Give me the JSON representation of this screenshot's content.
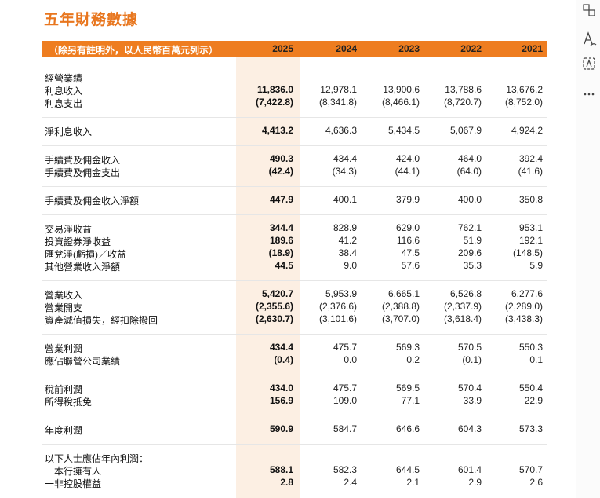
{
  "title": "五年財務數據",
  "table": {
    "header": {
      "note": "（除另有註明外，以人民幣百萬元列示）",
      "years": [
        "2025",
        "2024",
        "2023",
        "2022",
        "2021"
      ]
    },
    "groups": [
      {
        "rows": [
          {
            "label": "經營業績"
          },
          {
            "label": "利息收入",
            "values": [
              "11,836.0",
              "12,978.1",
              "13,900.6",
              "13,788.6",
              "13,676.2"
            ]
          },
          {
            "label": "利息支出",
            "values": [
              "(7,422.8)",
              "(8,341.8)",
              "(8,466.1)",
              "(8,720.7)",
              "(8,752.0)"
            ]
          }
        ]
      },
      {
        "rows": [
          {
            "label": "淨利息收入",
            "values": [
              "4,413.2",
              "4,636.3",
              "5,434.5",
              "5,067.9",
              "4,924.2"
            ]
          }
        ]
      },
      {
        "rows": [
          {
            "label": "手續費及佣金收入",
            "values": [
              "490.3",
              "434.4",
              "424.0",
              "464.0",
              "392.4"
            ]
          },
          {
            "label": "手續費及佣金支出",
            "values": [
              "(42.4)",
              "(34.3)",
              "(44.1)",
              "(64.0)",
              "(41.6)"
            ]
          }
        ]
      },
      {
        "rows": [
          {
            "label": "手續費及佣金收入淨額",
            "values": [
              "447.9",
              "400.1",
              "379.9",
              "400.0",
              "350.8"
            ]
          }
        ]
      },
      {
        "rows": [
          {
            "label": "交易淨收益",
            "values": [
              "344.4",
              "828.9",
              "629.0",
              "762.1",
              "953.1"
            ]
          },
          {
            "label": "投資證券淨收益",
            "values": [
              "189.6",
              "41.2",
              "116.6",
              "51.9",
              "192.1"
            ]
          },
          {
            "label": "匯兌淨(虧損)／收益",
            "values": [
              "(18.9)",
              "38.4",
              "47.5",
              "209.6",
              "(148.5)"
            ]
          },
          {
            "label": "其他營業收入淨額",
            "values": [
              "44.5",
              "9.0",
              "57.6",
              "35.3",
              "5.9"
            ]
          }
        ]
      },
      {
        "rows": [
          {
            "label": "營業收入",
            "values": [
              "5,420.7",
              "5,953.9",
              "6,665.1",
              "6,526.8",
              "6,277.6"
            ]
          },
          {
            "label": "營業開支",
            "values": [
              "(2,355.6)",
              "(2,376.6)",
              "(2,388.8)",
              "(2,337.9)",
              "(2,289.0)"
            ]
          },
          {
            "label": "資產減值損失，經扣除撥回",
            "values": [
              "(2,630.7)",
              "(3,101.6)",
              "(3,707.0)",
              "(3,618.4)",
              "(3,438.3)"
            ]
          }
        ]
      },
      {
        "rows": [
          {
            "label": "營業利潤",
            "values": [
              "434.4",
              "475.7",
              "569.3",
              "570.5",
              "550.3"
            ]
          },
          {
            "label": "應佔聯營公司業績",
            "values": [
              "(0.4)",
              "0.0",
              "0.2",
              "(0.1)",
              "0.1"
            ]
          }
        ]
      },
      {
        "rows": [
          {
            "label": "稅前利潤",
            "values": [
              "434.0",
              "475.7",
              "569.5",
              "570.4",
              "550.4"
            ]
          },
          {
            "label": "所得稅抵免",
            "values": [
              "156.9",
              "109.0",
              "77.1",
              "33.9",
              "22.9"
            ]
          }
        ]
      },
      {
        "rows": [
          {
            "label": "年度利潤",
            "values": [
              "590.9",
              "584.7",
              "646.6",
              "604.3",
              "573.3"
            ]
          }
        ]
      },
      {
        "rows": [
          {
            "label": "以下人士應佔年內利潤："
          },
          {
            "label": "一本行擁有人",
            "values": [
              "588.1",
              "582.3",
              "644.5",
              "601.4",
              "570.7"
            ]
          },
          {
            "label": "一非控股權益",
            "values": [
              "2.8",
              "2.4",
              "2.1",
              "2.9",
              "2.6"
            ]
          }
        ]
      }
    ]
  }
}
